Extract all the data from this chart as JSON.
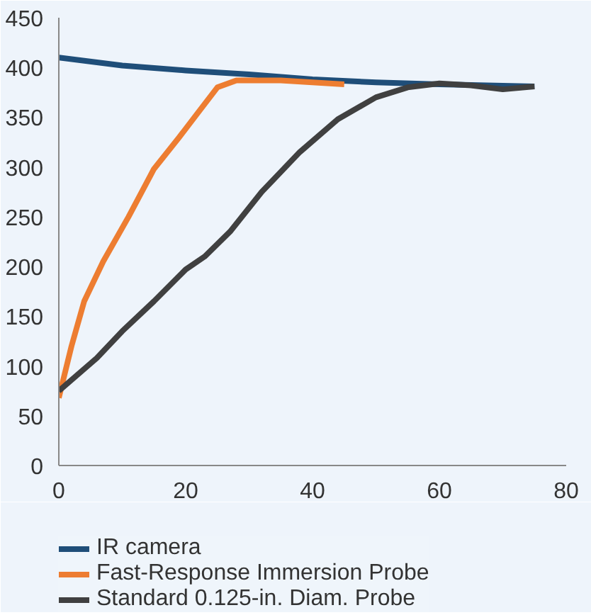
{
  "chart_data": {
    "type": "line",
    "x": [
      0,
      10,
      20,
      30,
      40,
      50,
      60,
      75
    ],
    "series": [
      {
        "name": "IR camera",
        "color": "#1f4e79",
        "values": [
          410,
          402,
          397,
          393,
          388,
          385,
          383,
          381
        ]
      },
      {
        "name": "Fast-Response Immersion Probe",
        "color": "#ed7d31",
        "x": [
          0,
          2,
          4,
          7,
          11,
          15,
          19,
          22,
          25,
          28,
          35,
          45
        ],
        "values": [
          68,
          120,
          165,
          205,
          250,
          298,
          330,
          355,
          380,
          387,
          387,
          383
        ]
      },
      {
        "name": "Standard 0.125-in. Diam. Probe",
        "color": "#404040",
        "x": [
          0,
          6,
          10,
          15,
          20,
          23,
          27,
          32,
          38,
          44,
          50,
          55,
          60,
          65,
          70,
          75
        ],
        "values": [
          75,
          108,
          135,
          165,
          197,
          210,
          235,
          275,
          315,
          348,
          370,
          380,
          384,
          382,
          378,
          381
        ]
      }
    ],
    "xlim": [
      0,
      80
    ],
    "xticks": [
      0,
      20,
      40,
      60,
      80
    ],
    "ylim": [
      0,
      450
    ],
    "yticks": [
      0,
      50,
      100,
      150,
      200,
      250,
      300,
      350,
      400,
      450
    ],
    "grid": false,
    "legend": "bottom",
    "marker": "none",
    "line_style": "solid"
  }
}
